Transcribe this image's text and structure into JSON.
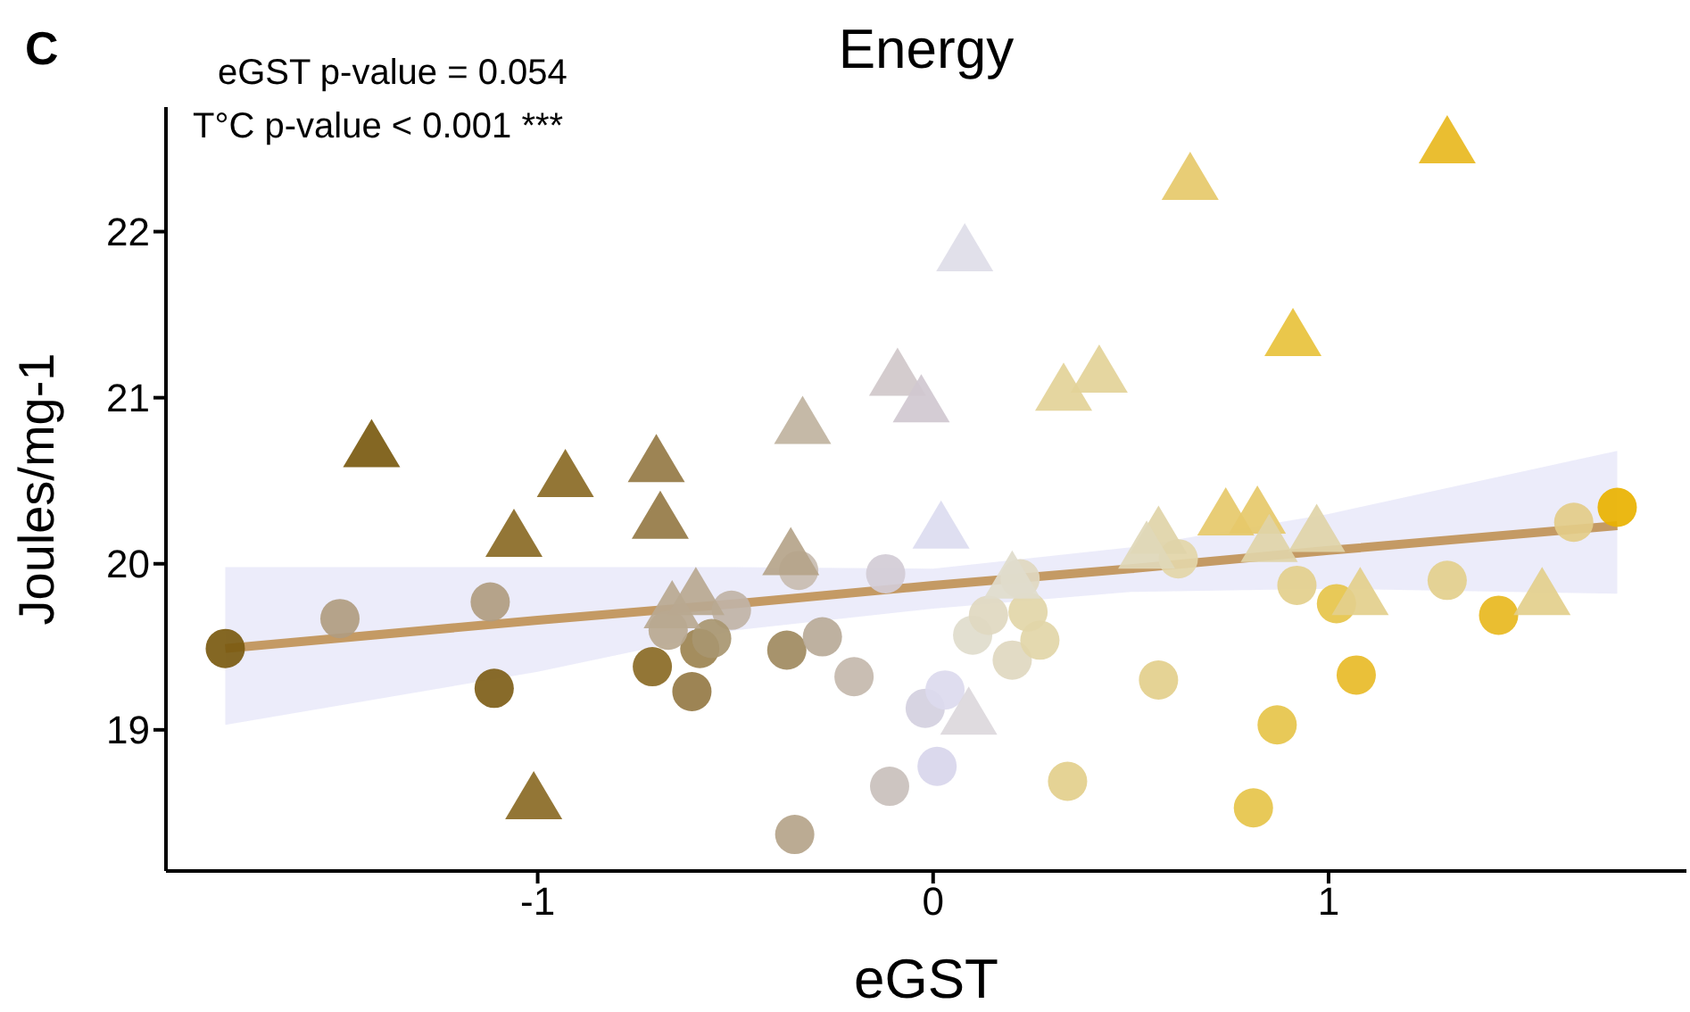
{
  "chart_data": {
    "type": "scatter",
    "title": "Energy",
    "xlabel": "eGST",
    "ylabel": "Joules/mg-1",
    "annotations": [
      "C",
      "eGST p-value = 0.054",
      "T°C p-value < 0.001 ***"
    ],
    "xlim": [
      -1.94,
      1.905
    ],
    "ylim": [
      18.15,
      22.75
    ],
    "xticks": [
      -1,
      0,
      1
    ],
    "yticks": [
      19,
      20,
      21,
      22
    ],
    "series": [
      {
        "marker": "circle",
        "x": [
          -1.79,
          -1.5,
          -1.12,
          -1.11,
          -0.71,
          -0.61,
          -0.59,
          -0.51,
          -0.37,
          -0.28,
          -0.2,
          -0.34,
          -0.12,
          -0.02,
          0.03,
          0.01,
          -0.11,
          -0.35,
          0.1,
          0.14,
          0.2,
          0.27,
          0.24,
          0.22,
          0.34,
          -0.67,
          -0.56,
          0.62,
          0.57,
          0.92,
          1.02,
          1.07,
          0.87,
          0.81,
          1.3,
          1.43,
          1.62,
          1.73
        ],
        "values": [
          19.49,
          19.67,
          19.77,
          19.25,
          19.38,
          19.23,
          19.49,
          19.72,
          19.48,
          19.56,
          19.32,
          19.96,
          19.94,
          19.13,
          19.24,
          18.78,
          18.66,
          18.37,
          19.57,
          19.69,
          19.42,
          19.54,
          19.71,
          19.91,
          18.69,
          19.6,
          19.55,
          20.03,
          19.3,
          19.87,
          19.76,
          19.33,
          19.03,
          18.53,
          19.9,
          19.69,
          20.25,
          20.34
        ],
        "colors": [
          "#7a5a10",
          "#b09c80",
          "#b09c80",
          "#7e5e18",
          "#8a6a25",
          "#957a45",
          "#9c8350",
          "#c0b3a6",
          "#a08a60",
          "#b8aa98",
          "#c4b8ac",
          "#c8bcb0",
          "#d2ccd6",
          "#d4d0e0",
          "#dcdaee",
          "#d8d6ec",
          "#c9c0bc",
          "#b5a48a",
          "#e0dccc",
          "#e0d8c0",
          "#e0d8c0",
          "#e2d6a8",
          "#e2d6a8",
          "#e0d8c0",
          "#e3cf8c",
          "#b8a890",
          "#a89670",
          "#e3d6a8",
          "#e3cf8c",
          "#e3cf8c",
          "#e6c44a",
          "#e8bb28",
          "#e6c44a",
          "#e6c44a",
          "#e3cf8c",
          "#e8b820",
          "#e3cc88",
          "#e9b200"
        ]
      },
      {
        "marker": "triangle",
        "x": [
          -1.42,
          -1.06,
          -0.93,
          -0.7,
          -0.69,
          -1.01,
          -0.33,
          -0.36,
          -0.09,
          -0.03,
          0.08,
          0.02,
          0.09,
          0.33,
          0.42,
          -0.66,
          -0.6,
          0.2,
          0.65,
          1.3,
          0.91,
          0.57,
          0.54,
          0.74,
          0.82,
          0.85,
          0.97,
          1.08,
          1.54
        ],
        "values": [
          20.71,
          20.17,
          20.53,
          20.62,
          20.28,
          18.59,
          20.85,
          20.06,
          21.14,
          20.98,
          21.89,
          20.22,
          19.1,
          21.05,
          21.16,
          19.74,
          19.82,
          19.92,
          22.32,
          22.54,
          21.38,
          20.19,
          20.1,
          20.3,
          20.31,
          20.14,
          20.2,
          19.82,
          19.82
        ],
        "colors": [
          "#7a5a10",
          "#8a6a25",
          "#8a6a25",
          "#957a45",
          "#957a45",
          "#8a6a25",
          "#c0b3a0",
          "#b5a48a",
          "#d0c8ca",
          "#d0c8d0",
          "#dedde8",
          "#dcdcf0",
          "#dcd8dc",
          "#e3d398",
          "#e3d398",
          "#b8a890",
          "#b8a890",
          "#e0dccc",
          "#e6c96a",
          "#e8b820",
          "#e8c23c",
          "#e0d4a8",
          "#e0d8b8",
          "#e6c96a",
          "#e6c96a",
          "#e0d4a8",
          "#e0d4a8",
          "#e3cf8c",
          "#e3cf8c"
        ]
      },
      {
        "type": "line",
        "color": "#c49a64",
        "x": [
          -1.79,
          -1,
          -0.5,
          0,
          0.5,
          1,
          1.73
        ],
        "values": [
          19.49,
          19.66,
          19.76,
          19.87,
          19.97,
          20.08,
          20.23
        ],
        "lower": [
          19.03,
          19.35,
          19.6,
          19.73,
          19.83,
          19.85,
          19.82
        ],
        "upper": [
          19.98,
          19.98,
          19.98,
          19.97,
          20.1,
          20.3,
          20.68
        ]
      }
    ]
  }
}
